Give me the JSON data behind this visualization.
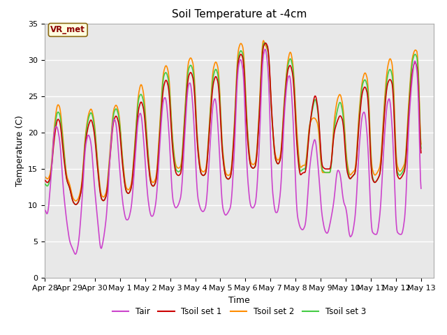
{
  "title": "Soil Temperature at -4cm",
  "xlabel": "Time",
  "ylabel": "Temperature (C)",
  "ylim": [
    0,
    35
  ],
  "xlim_days": 15.5,
  "plot_bg": "#e8e8e8",
  "grid_color": "white",
  "line_colors": {
    "Tair": "#cc44cc",
    "Tsoil1": "#cc0000",
    "Tsoil2": "#ff8c00",
    "Tsoil3": "#44cc44"
  },
  "line_widths": {
    "Tair": 1.2,
    "Tsoil1": 1.2,
    "Tsoil2": 1.2,
    "Tsoil3": 1.2
  },
  "legend_labels": [
    "Tair",
    "Tsoil set 1",
    "Tsoil set 2",
    "Tsoil set 3"
  ],
  "annotation_text": "VR_met",
  "annotation_color": "#8B0000",
  "annotation_bg": "#FFFFE0",
  "title_fontsize": 11,
  "axis_fontsize": 9,
  "tick_fontsize": 8,
  "yticks": [
    0,
    5,
    10,
    15,
    20,
    25,
    30,
    35
  ],
  "x_tick_labels": [
    "Apr 28",
    "Apr 29",
    "Apr 30",
    "May 1",
    "May 2",
    "May 3",
    "May 4",
    "May 5",
    "May 6",
    "May 7",
    "May 8",
    "May 9",
    "May 10",
    "May 11",
    "May 12",
    "May 13"
  ],
  "x_tick_days": [
    0,
    1,
    2,
    3,
    4,
    5,
    6,
    7,
    8,
    9,
    10,
    11,
    12,
    13,
    14,
    15
  ],
  "tair_data": [
    9.5,
    8.5,
    13.5,
    20.5,
    21.0,
    18.5,
    12.0,
    8.0,
    5.0,
    4.0,
    3.0,
    5.0,
    10.5,
    18.0,
    20.0,
    18.5,
    12.5,
    8.0,
    3.5,
    5.5,
    9.0,
    17.0,
    22.0,
    21.5,
    15.5,
    10.5,
    8.0,
    8.0,
    10.0,
    16.0,
    22.0,
    23.0,
    18.0,
    11.5,
    8.5,
    8.5,
    11.0,
    18.5,
    24.5,
    25.0,
    20.0,
    11.0,
    9.5,
    10.0,
    11.5,
    19.5,
    26.5,
    27.0,
    21.5,
    11.5,
    9.5,
    9.0,
    10.0,
    17.0,
    24.0,
    25.0,
    19.0,
    10.0,
    8.5,
    9.0,
    10.0,
    17.5,
    28.5,
    30.5,
    28.0,
    15.0,
    10.0,
    9.5,
    10.5,
    18.0,
    30.0,
    32.0,
    28.0,
    13.0,
    9.0,
    9.0,
    12.5,
    22.5,
    27.5,
    28.0,
    21.0,
    9.0,
    7.0,
    6.5,
    7.5,
    14.5,
    18.0,
    19.5,
    15.0,
    9.0,
    6.5,
    6.0,
    8.0,
    10.5,
    15.0,
    14.5,
    10.5,
    9.5,
    5.5,
    6.0,
    9.0,
    17.5,
    22.5,
    23.0,
    18.0,
    6.5,
    6.0,
    6.0,
    9.5,
    18.0,
    24.0,
    25.0,
    19.0,
    6.5,
    6.0,
    6.0,
    9.0,
    21.0,
    27.0,
    30.5,
    27.5,
    10.0
  ],
  "tsoil1_data": [
    13.5,
    13.0,
    14.0,
    19.0,
    22.0,
    21.5,
    17.0,
    13.5,
    12.5,
    10.5,
    10.0,
    10.5,
    12.5,
    18.5,
    21.0,
    22.0,
    20.0,
    15.0,
    11.0,
    10.5,
    11.5,
    16.5,
    21.5,
    22.5,
    21.0,
    15.5,
    12.0,
    11.5,
    12.5,
    17.5,
    23.0,
    24.5,
    23.0,
    17.0,
    13.0,
    12.5,
    13.5,
    19.5,
    26.0,
    27.5,
    26.0,
    18.0,
    14.5,
    14.0,
    14.5,
    21.0,
    27.5,
    28.5,
    27.0,
    18.5,
    14.5,
    14.0,
    14.5,
    20.5,
    26.5,
    28.0,
    26.5,
    17.5,
    14.0,
    13.5,
    14.0,
    20.0,
    29.5,
    31.0,
    30.0,
    20.0,
    15.5,
    15.0,
    15.5,
    22.0,
    31.5,
    32.5,
    31.5,
    22.5,
    16.5,
    15.5,
    16.5,
    23.5,
    28.5,
    29.5,
    27.5,
    18.5,
    14.0,
    14.5,
    14.5,
    20.0,
    23.5,
    25.5,
    23.0,
    15.5,
    15.0,
    15.0,
    15.0,
    20.0,
    21.5,
    22.5,
    21.5,
    15.0,
    13.5,
    14.0,
    14.5,
    21.0,
    25.5,
    26.5,
    25.0,
    14.0,
    13.0,
    13.5,
    14.5,
    21.5,
    26.5,
    27.5,
    26.5,
    14.5,
    13.5,
    14.0,
    15.0,
    22.5,
    28.0,
    30.0,
    28.5,
    15.5
  ],
  "tsoil2_data": [
    14.0,
    13.5,
    14.5,
    20.5,
    24.0,
    23.5,
    18.5,
    14.0,
    13.0,
    11.0,
    10.5,
    11.0,
    13.0,
    19.5,
    22.5,
    23.5,
    21.5,
    16.0,
    11.5,
    11.0,
    12.0,
    17.5,
    23.0,
    24.0,
    22.5,
    16.5,
    12.5,
    12.0,
    13.0,
    18.5,
    25.0,
    27.0,
    25.0,
    18.5,
    13.5,
    13.0,
    14.0,
    21.0,
    28.0,
    29.5,
    28.0,
    19.5,
    15.5,
    15.0,
    15.5,
    22.5,
    29.5,
    30.5,
    29.0,
    19.5,
    15.0,
    14.5,
    15.0,
    21.5,
    28.5,
    30.0,
    28.5,
    18.5,
    14.5,
    14.0,
    14.5,
    21.0,
    31.0,
    32.5,
    31.5,
    21.5,
    16.0,
    15.5,
    16.0,
    23.0,
    33.0,
    32.0,
    31.0,
    22.0,
    17.0,
    16.0,
    17.0,
    24.5,
    29.5,
    31.5,
    29.0,
    20.5,
    15.0,
    15.5,
    15.5,
    21.0,
    22.0,
    22.0,
    21.0,
    14.5,
    14.5,
    14.5,
    14.5,
    21.5,
    24.5,
    25.5,
    23.5,
    16.5,
    14.0,
    14.5,
    15.0,
    22.5,
    27.0,
    28.5,
    27.0,
    15.5,
    14.0,
    14.5,
    15.5,
    23.0,
    28.5,
    30.5,
    29.0,
    16.0,
    14.5,
    15.0,
    16.0,
    24.0,
    30.0,
    31.5,
    31.0,
    16.5
  ],
  "tsoil3_data": [
    13.0,
    12.5,
    14.0,
    20.0,
    23.0,
    22.5,
    18.0,
    13.5,
    12.5,
    10.5,
    10.0,
    10.5,
    12.5,
    19.0,
    22.0,
    23.0,
    21.0,
    15.5,
    11.0,
    10.5,
    11.5,
    17.0,
    22.5,
    23.5,
    22.0,
    16.0,
    12.0,
    11.5,
    12.5,
    18.0,
    24.5,
    25.5,
    24.0,
    18.0,
    13.0,
    12.5,
    13.5,
    20.0,
    27.5,
    28.5,
    27.0,
    19.0,
    15.0,
    14.5,
    15.0,
    22.0,
    28.5,
    29.5,
    28.0,
    19.0,
    14.5,
    14.0,
    14.5,
    21.0,
    27.5,
    29.0,
    27.5,
    18.0,
    14.0,
    13.5,
    14.0,
    20.5,
    30.0,
    31.5,
    30.5,
    21.0,
    15.5,
    15.0,
    15.5,
    22.5,
    32.0,
    32.5,
    31.0,
    22.0,
    16.5,
    15.5,
    16.5,
    24.0,
    29.0,
    30.5,
    28.5,
    19.0,
    14.5,
    15.0,
    15.0,
    20.5,
    23.0,
    25.0,
    22.5,
    15.0,
    14.5,
    14.5,
    14.5,
    20.5,
    23.0,
    24.5,
    22.5,
    16.0,
    13.5,
    14.0,
    14.5,
    21.5,
    26.5,
    27.5,
    26.0,
    14.5,
    13.0,
    13.5,
    14.5,
    22.0,
    27.5,
    29.0,
    27.5,
    15.0,
    14.0,
    14.5,
    15.5,
    23.0,
    29.5,
    31.0,
    30.0,
    16.0
  ]
}
